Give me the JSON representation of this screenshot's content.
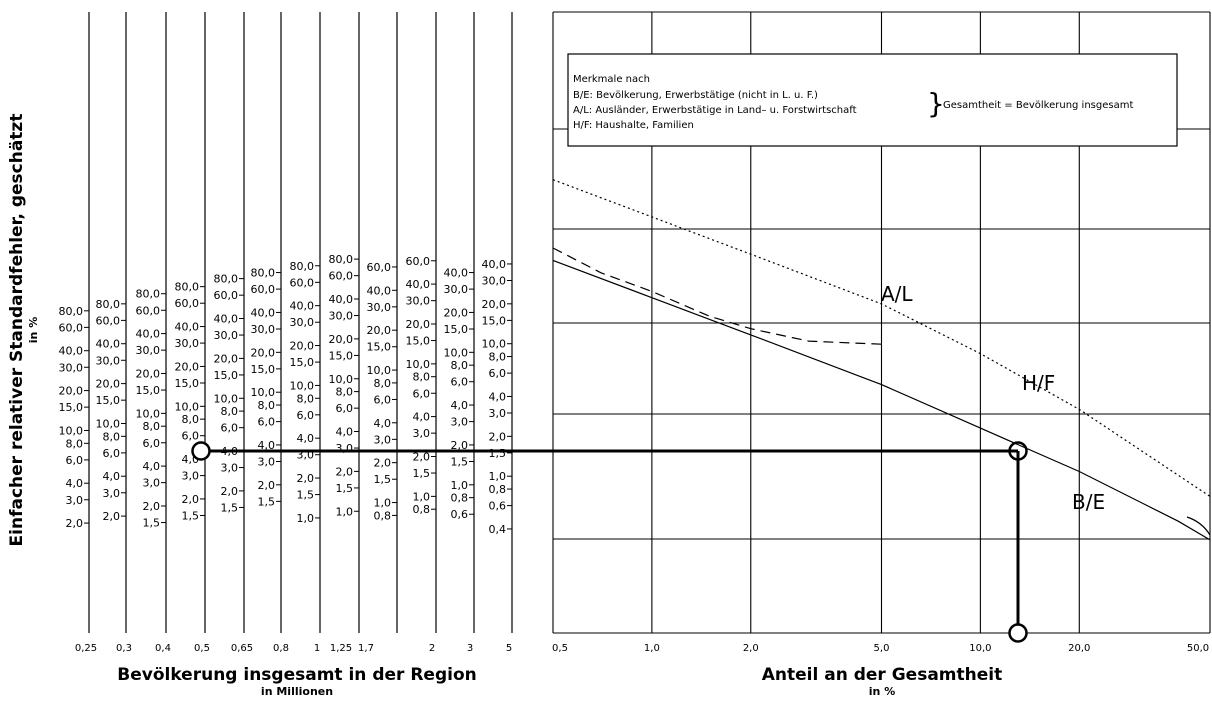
{
  "chart_data": [
    {
      "type": "nomogram-scales",
      "y_axis_label": "Einfacher relativer Standardfehler, geschätzt",
      "y_axis_unit": "in %",
      "x_axis_label": "Bevölkerung insgesamt in der Region",
      "x_axis_unit": "in Millionen",
      "population_values": [
        "0,25",
        "0,3",
        "0,4",
        "0,5",
        "0,65",
        "0,8",
        "1",
        "1,25",
        "1,7",
        "2",
        "3",
        "5"
      ],
      "scales": [
        {
          "population": "0,25",
          "ticks": [
            "80,0",
            "60,0",
            "40,0",
            "30,0",
            "20,0",
            "15,0",
            "10,0",
            "8,0",
            "6,0",
            "4,0",
            "3,0",
            "2,0"
          ]
        },
        {
          "population": "0,3",
          "ticks": [
            "80,0",
            "60,0",
            "40,0",
            "30,0",
            "20,0",
            "15,0",
            "10,0",
            "8,0",
            "6,0",
            "4,0",
            "3,0",
            "2,0"
          ]
        },
        {
          "population": "0,4",
          "ticks": [
            "80,0",
            "60,0",
            "40,0",
            "30,0",
            "20,0",
            "15,0",
            "10,0",
            "8,0",
            "6,0",
            "4,0",
            "3,0",
            "2,0",
            "1,5"
          ]
        },
        {
          "population": "0,5",
          "ticks": [
            "80,0",
            "60,0",
            "40,0",
            "30,0",
            "20,0",
            "15,0",
            "10,0",
            "8,0",
            "6,0",
            "4,0",
            "3,0",
            "2,0",
            "1,5"
          ]
        },
        {
          "population": "0,65",
          "ticks": [
            "80,0",
            "60,0",
            "40,0",
            "30,0",
            "20,0",
            "15,0",
            "10,0",
            "8,0",
            "6,0",
            "4,0",
            "3,0",
            "2,0",
            "1,5"
          ]
        },
        {
          "population": "0,8",
          "ticks": [
            "80,0",
            "60,0",
            "40,0",
            "30,0",
            "20,0",
            "15,0",
            "10,0",
            "8,0",
            "6,0",
            "4,0",
            "3,0",
            "2,0",
            "1,5"
          ]
        },
        {
          "population": "1",
          "ticks": [
            "80,0",
            "60,0",
            "40,0",
            "30,0",
            "20,0",
            "15,0",
            "10,0",
            "8,0",
            "6,0",
            "4,0",
            "3,0",
            "2,0",
            "1,5",
            "1,0"
          ]
        },
        {
          "population": "1,25",
          "ticks": [
            "80,0",
            "60,0",
            "40,0",
            "30,0",
            "20,0",
            "15,0",
            "10,0",
            "8,0",
            "6,0",
            "4,0",
            "3,0",
            "2,0",
            "1,5",
            "1,0"
          ]
        },
        {
          "population": "1,7",
          "ticks": [
            "60,0",
            "40,0",
            "30,0",
            "20,0",
            "15,0",
            "10,0",
            "8,0",
            "6,0",
            "4,0",
            "3,0",
            "2,0",
            "1,5",
            "1,0",
            "0,8"
          ]
        },
        {
          "population": "2",
          "ticks": [
            "60,0",
            "40,0",
            "30,0",
            "20,0",
            "15,0",
            "10,0",
            "8,0",
            "6,0",
            "4,0",
            "3,0",
            "2,0",
            "1,5",
            "1,0",
            "0,8"
          ]
        },
        {
          "population": "3",
          "ticks": [
            "40,0",
            "30,0",
            "20,0",
            "15,0",
            "10,0",
            "8,0",
            "6,0",
            "4,0",
            "3,0",
            "2,0",
            "1,5",
            "1,0",
            "0,8",
            "0,6"
          ]
        },
        {
          "population": "5",
          "ticks": [
            "40,0",
            "30,0",
            "20,0",
            "15,0",
            "10,0",
            "8,0",
            "6,0",
            "4,0",
            "3,0",
            "2,0",
            "1,5",
            "1,0",
            "0,8",
            "0,6",
            "0,4"
          ]
        }
      ]
    },
    {
      "type": "line",
      "x_scale": "log",
      "xlabel": "Anteil an der Gesamtheit",
      "x_unit": "in %",
      "x_ticks": [
        "0,5",
        "1,0",
        "2,0",
        "5,0",
        "10,0",
        "20,0",
        "50,0"
      ],
      "grid": true,
      "series": [
        {
          "name": "A/L",
          "style": "dashed",
          "x": [
            0.5,
            0.7,
            1.0,
            1.5,
            2.0,
            3.0,
            5.0
          ],
          "relative_position": [
            0.38,
            0.42,
            0.45,
            0.49,
            0.51,
            0.53,
            0.535
          ]
        },
        {
          "name": "H/F",
          "style": "dotted",
          "x": [
            0.5,
            1.0,
            2.0,
            5.0,
            10.0,
            20.0,
            50.0
          ],
          "relative_position": [
            0.27,
            0.33,
            0.39,
            0.47,
            0.55,
            0.64,
            0.78
          ]
        },
        {
          "name": "B/E",
          "style": "solid",
          "x": [
            0.5,
            1.0,
            2.0,
            5.0,
            10.0,
            20.0,
            40.0,
            50.0
          ],
          "relative_position": [
            0.4,
            0.46,
            0.52,
            0.6,
            0.67,
            0.74,
            0.82,
            0.85
          ]
        }
      ],
      "example_reading": {
        "share_percent": 14,
        "population_millions": "0,5"
      }
    }
  ],
  "legend": {
    "heading": "Merkmale nach",
    "lines": [
      "B/E: Bevölkerung, Erwerbstätige (nicht in L. u. F.)",
      "A/L: Ausländer, Erwerbstätige in Land– u. Forstwirtschaft",
      "H/F: Haushalte, Familien"
    ],
    "brace_text": "Gesamtheit = Bevölkerung insgesamt"
  }
}
